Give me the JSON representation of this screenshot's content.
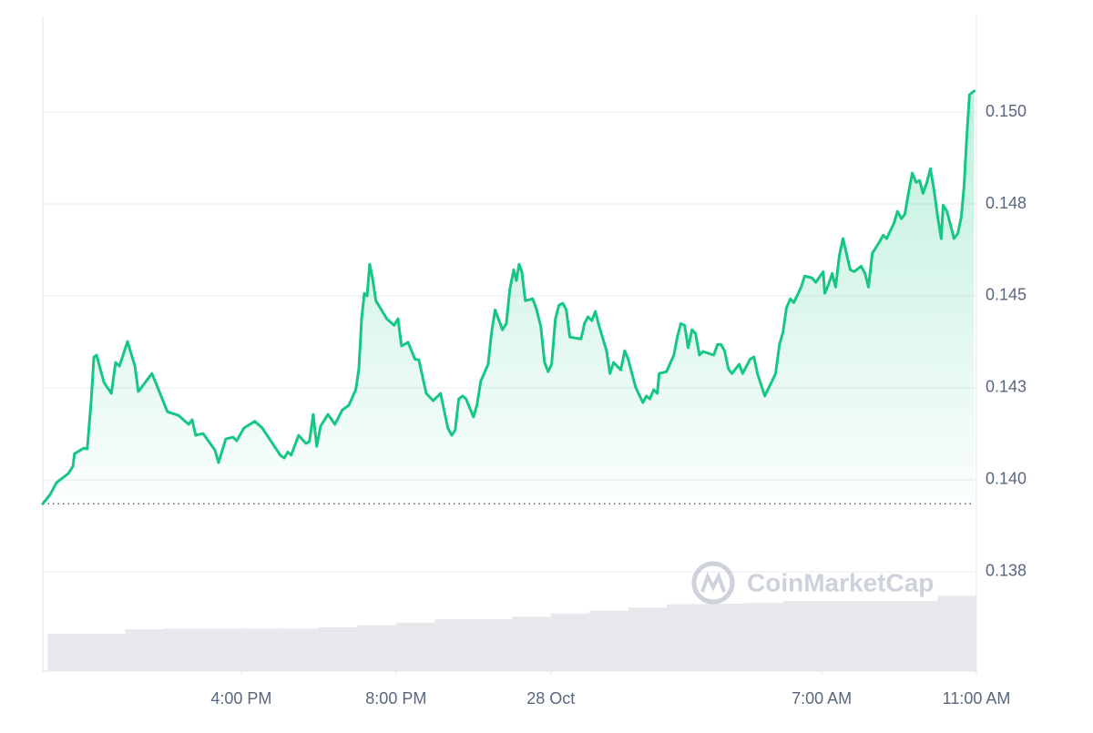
{
  "chart_data": {
    "type": "line",
    "watermark": "CoinMarketCap",
    "color": "#16c784",
    "grid": true,
    "x": [
      -13.13,
      -12.94,
      -12.78,
      -12.47,
      -12.35,
      -12.31,
      -12.07,
      -11.98,
      -11.88,
      -11.81,
      -11.74,
      -11.55,
      -11.36,
      -11.25,
      -11.15,
      -10.94,
      -10.75,
      -10.66,
      -10.31,
      -10.12,
      -9.91,
      -9.62,
      -9.36,
      -9.27,
      -9.18,
      -8.99,
      -8.68,
      -8.59,
      -8.4,
      -8.21,
      -8.12,
      -7.93,
      -7.65,
      -7.46,
      -7.27,
      -6.99,
      -6.89,
      -6.8,
      -6.71,
      -6.52,
      -6.33,
      -6.24,
      -6.14,
      -6.05,
      -5.95,
      -5.76,
      -5.58,
      -5.39,
      -5.22,
      -5.04,
      -4.96,
      -4.89,
      -4.82,
      -4.75,
      -4.68,
      -4.61,
      -4.52,
      -4.24,
      -4.05,
      -3.95,
      -3.86,
      -3.69,
      -3.51,
      -3.41,
      -3.22,
      -3.04,
      -2.85,
      -2.66,
      -2.56,
      -2.47,
      -2.38,
      -2.28,
      -2.19,
      -2.0,
      -1.91,
      -1.81,
      -1.62,
      -1.53,
      -1.44,
      -1.25,
      -1.15,
      -1.06,
      -0.96,
      -0.89,
      -0.82,
      -0.75,
      -0.66,
      -0.47,
      -0.38,
      -0.26,
      -0.16,
      -0.07,
      0.02,
      0.12,
      0.21,
      0.31,
      0.4,
      0.49,
      0.78,
      0.87,
      0.96,
      1.06,
      1.15,
      1.25,
      1.44,
      1.53,
      1.62,
      1.81,
      1.91,
      2.0,
      2.19,
      2.38,
      2.47,
      2.56,
      2.66,
      2.75,
      2.8,
      2.99,
      3.18,
      3.27,
      3.36,
      3.46,
      3.55,
      3.65,
      3.74,
      3.84,
      3.93,
      4.21,
      4.31,
      4.4,
      4.49,
      4.59,
      4.68,
      4.87,
      4.96,
      5.15,
      5.25,
      5.34,
      5.53,
      5.72,
      5.81,
      5.91,
      6.0,
      6.09,
      6.19,
      6.28,
      6.47,
      6.56,
      6.75,
      6.85,
      7.04,
      7.08,
      7.18,
      7.27,
      7.36,
      7.46,
      7.55,
      7.74,
      7.84,
      8.02,
      8.12,
      8.21,
      8.31,
      8.49,
      8.59,
      8.68,
      8.87,
      8.96,
      9.06,
      9.15,
      9.25,
      9.34,
      9.44,
      9.53,
      9.62,
      9.72,
      9.81,
      9.91,
      10.0,
      10.09,
      10.14,
      10.24,
      10.42,
      10.52,
      10.61,
      10.68,
      10.75,
      10.82,
      10.94
    ],
    "values": [
      0.13935,
      0.1396,
      0.13992,
      0.14017,
      0.14037,
      0.14071,
      0.14086,
      0.14084,
      0.14215,
      0.14334,
      0.14339,
      0.14265,
      0.14235,
      0.14319,
      0.14309,
      0.14376,
      0.14309,
      0.1424,
      0.14289,
      0.1424,
      0.14185,
      0.14175,
      0.14151,
      0.14163,
      0.14121,
      0.14126,
      0.14081,
      0.14047,
      0.14111,
      0.14116,
      0.14106,
      0.14141,
      0.14159,
      0.14141,
      0.14111,
      0.14067,
      0.14059,
      0.14076,
      0.14067,
      0.14121,
      0.14099,
      0.14104,
      0.14178,
      0.14091,
      0.14146,
      0.14178,
      0.14151,
      0.1419,
      0.14203,
      0.14245,
      0.14302,
      0.14438,
      0.14507,
      0.145,
      0.14586,
      0.14549,
      0.14487,
      0.14438,
      0.1442,
      0.14438,
      0.14364,
      0.14374,
      0.14328,
      0.14326,
      0.14235,
      0.14215,
      0.14235,
      0.14141,
      0.14121,
      0.14136,
      0.1422,
      0.14228,
      0.1422,
      0.14171,
      0.14203,
      0.14269,
      0.14314,
      0.14401,
      0.14462,
      0.14408,
      0.14425,
      0.14517,
      0.14571,
      0.14542,
      0.14586,
      0.14566,
      0.14487,
      0.14492,
      0.14467,
      0.14418,
      0.14319,
      0.14294,
      0.14314,
      0.14438,
      0.14475,
      0.1448,
      0.14462,
      0.14388,
      0.14383,
      0.14425,
      0.14443,
      0.14433,
      0.14458,
      0.14418,
      0.14351,
      0.14289,
      0.14319,
      0.14299,
      0.14351,
      0.14328,
      0.14252,
      0.1421,
      0.14228,
      0.1422,
      0.14245,
      0.14235,
      0.14289,
      0.14294,
      0.14339,
      0.14388,
      0.14425,
      0.1442,
      0.14359,
      0.14408,
      0.14398,
      0.14339,
      0.14349,
      0.14339,
      0.14368,
      0.14368,
      0.14351,
      0.14302,
      0.14289,
      0.14314,
      0.14289,
      0.14328,
      0.14334,
      0.14289,
      0.14228,
      0.14269,
      0.14289,
      0.14368,
      0.14401,
      0.14467,
      0.14492,
      0.14482,
      0.14524,
      0.14554,
      0.14549,
      0.14537,
      0.14566,
      0.14507,
      0.14532,
      0.14561,
      0.14524,
      0.14611,
      0.14656,
      0.14571,
      0.14566,
      0.14581,
      0.14561,
      0.14524,
      0.14616,
      0.14646,
      0.14665,
      0.14656,
      0.14698,
      0.1473,
      0.1471,
      0.14722,
      0.14784,
      0.14834,
      0.14809,
      0.14814,
      0.14779,
      0.14809,
      0.14846,
      0.14784,
      0.14715,
      0.14656,
      0.14747,
      0.1473,
      0.14656,
      0.1467,
      0.14715,
      0.14797,
      0.14933,
      0.15047,
      0.15057
    ],
    "xlim": [
      -13.13,
      11.0
    ],
    "xticks": [
      {
        "value": -8,
        "label": "4:00 PM"
      },
      {
        "value": -4,
        "label": "8:00 PM"
      },
      {
        "value": 0,
        "label": "28 Oct"
      },
      {
        "value": 7,
        "label": "7:00 AM"
      },
      {
        "value": 11,
        "label": "11:00 AM"
      }
    ],
    "ylim": [
      0.1348,
      0.1526
    ],
    "yticks": [
      {
        "value": 0.1375,
        "label": "0.138"
      },
      {
        "value": 0.14,
        "label": "0.140"
      },
      {
        "value": 0.1425,
        "label": "0.143"
      },
      {
        "value": 0.145,
        "label": "0.145"
      },
      {
        "value": 0.1475,
        "label": "0.148"
      },
      {
        "value": 0.15,
        "label": "0.150"
      }
    ],
    "y2lim": [
      0,
      100
    ],
    "volume": {
      "axis": "y2",
      "color": "#e6e8ec",
      "x": [
        -13,
        -12,
        -11,
        -10,
        -9,
        -8,
        -7,
        -6,
        -5,
        -4,
        -3,
        -2,
        -1,
        0,
        1,
        2,
        3,
        4,
        5,
        6,
        7,
        8,
        9,
        10
      ],
      "values": [
        5.7,
        5.7,
        6.4,
        6.5,
        6.5,
        6.5,
        6.5,
        6.7,
        7.0,
        7.4,
        7.9,
        7.9,
        8.3,
        8.8,
        9.2,
        9.7,
        10.2,
        10.3,
        10.4,
        10.7,
        10.7,
        10.7,
        10.7,
        11.5
      ]
    }
  }
}
